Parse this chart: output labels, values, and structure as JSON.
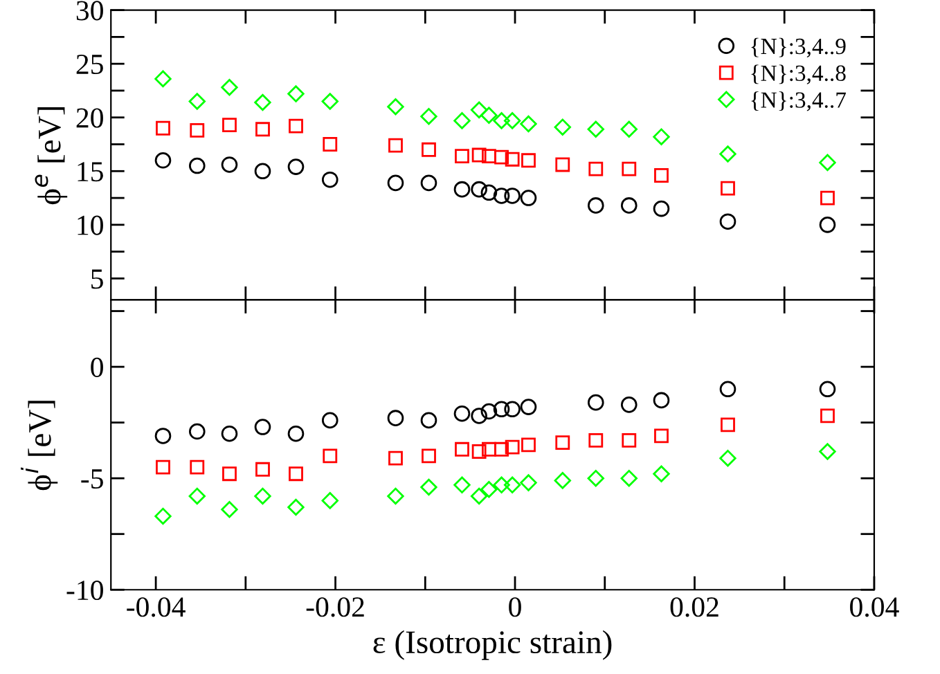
{
  "chart_data": [
    {
      "type": "scatter",
      "ylabel": "ϕ$^{e}$ [eV]",
      "legend": "top right",
      "grid": false,
      "tick_labels": "y",
      "x": [
        -0.0392,
        -0.0354,
        -0.0318,
        -0.0281,
        -0.0244,
        -0.0206,
        -0.0133,
        -0.0096,
        -0.0059,
        -0.004,
        -0.0029,
        -0.0015,
        -0.0003,
        0.0015,
        0.0053,
        0.009,
        0.0127,
        0.0163,
        0.0237,
        0.0348
      ],
      "xlim": [
        -0.045,
        0.04
      ],
      "xticks": [
        {
          "value": -0.04,
          "label": null
        },
        {
          "value": -0.03,
          "label": null
        },
        {
          "value": -0.02,
          "label": null
        },
        {
          "value": -0.01,
          "label": null
        },
        {
          "value": 0,
          "label": null
        },
        {
          "value": 0.01,
          "label": null
        },
        {
          "value": 0.02,
          "label": null
        },
        {
          "value": 0.03,
          "label": null
        },
        {
          "value": 0.04,
          "label": null
        }
      ],
      "ylim": [
        3,
        30
      ],
      "yticks": [
        5,
        {
          "value": 7.5,
          "label": null
        },
        10,
        {
          "value": 12.5,
          "label": null
        },
        15,
        {
          "value": 17.5,
          "label": null
        },
        20,
        {
          "value": 22.5,
          "label": null
        },
        25,
        {
          "value": 27.5,
          "label": null
        },
        30
      ],
      "series": [
        {
          "name": "{N}:3,4..9",
          "color": "#000000",
          "marker": "circle",
          "values": [
            16.0,
            15.5,
            15.6,
            15.0,
            15.4,
            14.2,
            13.9,
            13.9,
            13.3,
            13.3,
            13.0,
            12.7,
            12.7,
            12.5,
            null,
            11.8,
            11.8,
            11.5,
            10.3,
            10.0
          ]
        },
        {
          "name": "{N}:3,4..8",
          "color": "#ff0000",
          "marker": "square",
          "values": [
            19.0,
            18.8,
            19.3,
            18.9,
            19.2,
            17.5,
            17.4,
            17.0,
            16.4,
            16.5,
            16.4,
            16.3,
            16.1,
            16.0,
            15.6,
            15.2,
            15.2,
            14.6,
            13.4,
            12.5
          ]
        },
        {
          "name": "{N}:3,4..7",
          "color": "#00ff00",
          "marker": "diamond",
          "values": [
            23.6,
            21.5,
            22.8,
            21.4,
            22.2,
            21.5,
            21.0,
            20.1,
            19.7,
            20.7,
            20.2,
            19.7,
            19.7,
            19.4,
            19.1,
            18.9,
            18.9,
            18.2,
            16.6,
            15.8
          ]
        }
      ]
    },
    {
      "type": "scatter",
      "ylabel": "ϕ$^{i}$ [eV]",
      "xlabel": "ε (Isotropic strain)",
      "grid": false,
      "x": [
        -0.0392,
        -0.0354,
        -0.0318,
        -0.0281,
        -0.0244,
        -0.0206,
        -0.0133,
        -0.0096,
        -0.0059,
        -0.004,
        -0.0029,
        -0.0015,
        -0.0003,
        0.0015,
        0.0053,
        0.009,
        0.0127,
        0.0163,
        0.0237,
        0.0348
      ],
      "xlim": [
        -0.045,
        0.04
      ],
      "xticks": [
        -0.04,
        {
          "value": -0.03,
          "label": null
        },
        -0.02,
        {
          "value": -0.01,
          "label": null
        },
        0,
        {
          "value": 0.01,
          "label": null
        },
        0.02,
        {
          "value": 0.03,
          "label": null
        },
        0.04
      ],
      "ylim": [
        -10,
        3
      ],
      "yticks": [
        -10,
        {
          "value": -7.5,
          "label": null
        },
        -5,
        {
          "value": -2.5,
          "label": null
        },
        0,
        {
          "value": 2.5,
          "label": null
        }
      ],
      "series": [
        {
          "color": "#000000",
          "marker": "circle",
          "values": [
            -3.1,
            -2.9,
            -3.0,
            -2.7,
            -3.0,
            -2.4,
            -2.3,
            -2.4,
            -2.1,
            -2.2,
            -2.0,
            -1.9,
            -1.9,
            -1.8,
            null,
            -1.6,
            -1.7,
            -1.5,
            -1.0,
            -1.0
          ]
        },
        {
          "color": "#ff0000",
          "marker": "square",
          "values": [
            -4.5,
            -4.5,
            -4.8,
            -4.6,
            -4.8,
            -4.0,
            -4.1,
            -4.0,
            -3.7,
            -3.8,
            -3.7,
            -3.7,
            -3.6,
            -3.5,
            -3.4,
            -3.3,
            -3.3,
            -3.1,
            -2.6,
            -2.2
          ]
        },
        {
          "color": "#00ff00",
          "marker": "diamond",
          "values": [
            -6.7,
            -5.8,
            -6.4,
            -5.8,
            -6.3,
            -6.0,
            -5.8,
            -5.4,
            -5.3,
            -5.8,
            -5.5,
            -5.3,
            -5.3,
            -5.2,
            -5.1,
            -5.0,
            -5.0,
            -4.8,
            -4.1,
            -3.8
          ]
        }
      ]
    }
  ]
}
